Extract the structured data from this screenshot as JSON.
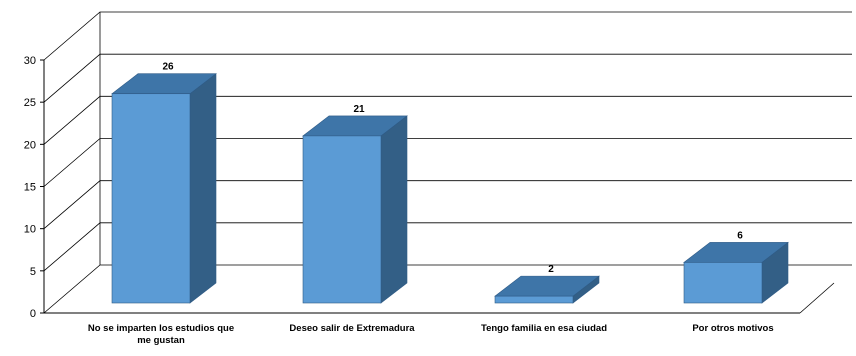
{
  "chart_data": {
    "type": "bar",
    "categories": [
      [
        "No se imparten los estudios que",
        "me gustan"
      ],
      [
        "Deseo salir de Extremadura"
      ],
      [
        "Tengo familia en esa ciudad"
      ],
      [
        "Por otros motivos"
      ]
    ],
    "values": [
      26,
      21,
      2,
      6
    ],
    "data_labels": [
      "26",
      "21",
      "2",
      "6"
    ],
    "ylim": [
      0,
      30
    ],
    "yticks": [
      0,
      5,
      10,
      15,
      20,
      25,
      30
    ],
    "ytick_labels": [
      "0",
      "5",
      "10",
      "15",
      "20",
      "25",
      "30"
    ],
    "title": "",
    "xlabel": "",
    "ylabel": "",
    "grid": true,
    "legend": "none",
    "style": "3d-column",
    "colors": {
      "bar_front": "#5b9bd5",
      "bar_top": "#3e75a8",
      "bar_side": "#335f86",
      "bar_edge": "#2f5b86",
      "grid": "#000000",
      "text": "#000000"
    }
  }
}
